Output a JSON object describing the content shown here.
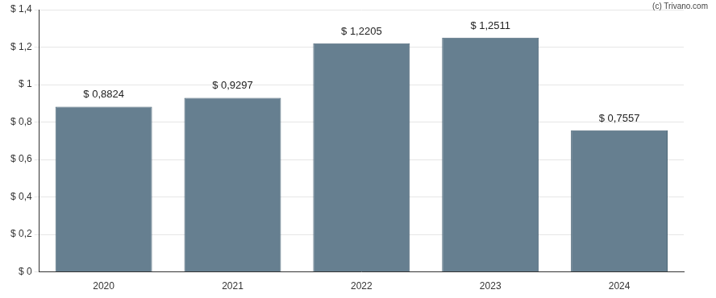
{
  "chart_data": {
    "type": "bar",
    "annotations": [
      "(c) Trivano.com"
    ],
    "categories": [
      "2020",
      "2021",
      "2022",
      "2023",
      "2024"
    ],
    "values": [
      0.8824,
      0.9297,
      1.2205,
      1.2511,
      0.7557
    ],
    "value_labels": [
      "$ 0,8824",
      "$ 0,9297",
      "$ 1,2205",
      "$ 1,2511",
      "$ 0,7557"
    ],
    "data_labels": true,
    "color": "#667f90",
    "ylim": [
      0,
      1.4
    ],
    "yticks": [
      {
        "value": 0,
        "label": "$ 0"
      },
      {
        "value": 0.2,
        "label": "$ 0,2"
      },
      {
        "value": 0.4,
        "label": "$ 0,4"
      },
      {
        "value": 0.6,
        "label": "$ 0,6"
      },
      {
        "value": 0.8,
        "label": "$ 0,8"
      },
      {
        "value": 1,
        "label": "$ 1"
      },
      {
        "value": 1.2,
        "label": "$ 1,2"
      },
      {
        "value": 1.4,
        "label": "$ 1,4"
      }
    ],
    "grid": true
  }
}
